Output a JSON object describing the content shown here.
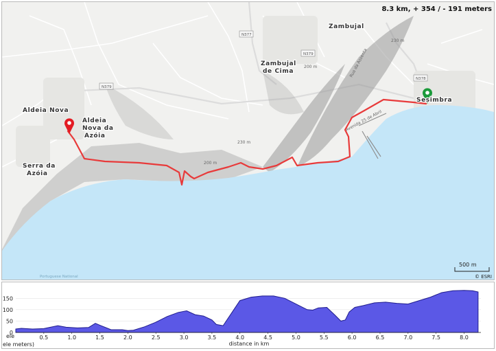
{
  "route_summary": {
    "text": "8.3 km, + 354 / - 191 meters",
    "distance_km": 8.3,
    "ascent_m": 354,
    "descent_m": 191
  },
  "map": {
    "places": [
      "Zambujal",
      "Zambujal de Cima",
      "Aldeia Nova",
      "Aldeia Nova da Azóia",
      "Serra da Azóia",
      "Sesimbra"
    ],
    "roads": [
      "N377",
      "N379",
      "N378"
    ],
    "contours": [
      "230 m",
      "200 m"
    ],
    "street": "Rua da Assenta",
    "coastal_road": "Avenida 25 de Abril",
    "scale_label": "500 m",
    "attribution": "© ESRI",
    "sea_label": "Portuguese National",
    "start_marker": "red pin",
    "end_marker": "green pin"
  },
  "colors": {
    "sea": "#c4e6f8",
    "land": "#f1f1ef",
    "route": "#e83a3a",
    "start_pin": "#e31b23",
    "end_pin": "#1a9a3a",
    "profile_fill": "#5b58e6",
    "profile_stroke": "#1f1c8c"
  },
  "chart_data": {
    "type": "area",
    "xlabel": "distance in km",
    "ylabel": "ele meters)",
    "xlim": [
      0,
      8.3
    ],
    "ylim": [
      0,
      190
    ],
    "x_ticks": [
      "0.5",
      "1.0",
      "1.5",
      "2.0",
      "2.5",
      "3.0",
      "3.5",
      "4.0",
      "4.5",
      "5.0",
      "5.5",
      "6.0",
      "6.5",
      "7.0",
      "7.5",
      "8.0"
    ],
    "y_ticks": [
      "0",
      "50",
      "100",
      "150"
    ],
    "x": [
      0,
      0.1,
      0.3,
      0.5,
      0.75,
      0.9,
      1.1,
      1.3,
      1.42,
      1.5,
      1.7,
      1.9,
      2.0,
      2.1,
      2.3,
      2.5,
      2.7,
      2.9,
      3.05,
      3.2,
      3.35,
      3.5,
      3.58,
      3.7,
      3.85,
      4.0,
      4.2,
      4.4,
      4.6,
      4.8,
      5.0,
      5.2,
      5.3,
      5.4,
      5.55,
      5.7,
      5.8,
      5.88,
      5.95,
      6.05,
      6.2,
      6.4,
      6.6,
      6.8,
      7.0,
      7.2,
      7.4,
      7.6,
      7.8,
      8.0,
      8.15,
      8.25
    ],
    "elevation": [
      15,
      18,
      15,
      17,
      30,
      23,
      20,
      22,
      40,
      32,
      12,
      12,
      8,
      10,
      25,
      45,
      70,
      88,
      95,
      78,
      72,
      55,
      35,
      30,
      85,
      140,
      155,
      160,
      160,
      150,
      125,
      100,
      98,
      108,
      110,
      75,
      50,
      55,
      90,
      110,
      118,
      130,
      133,
      128,
      125,
      140,
      155,
      175,
      183,
      185,
      183,
      178
    ]
  }
}
